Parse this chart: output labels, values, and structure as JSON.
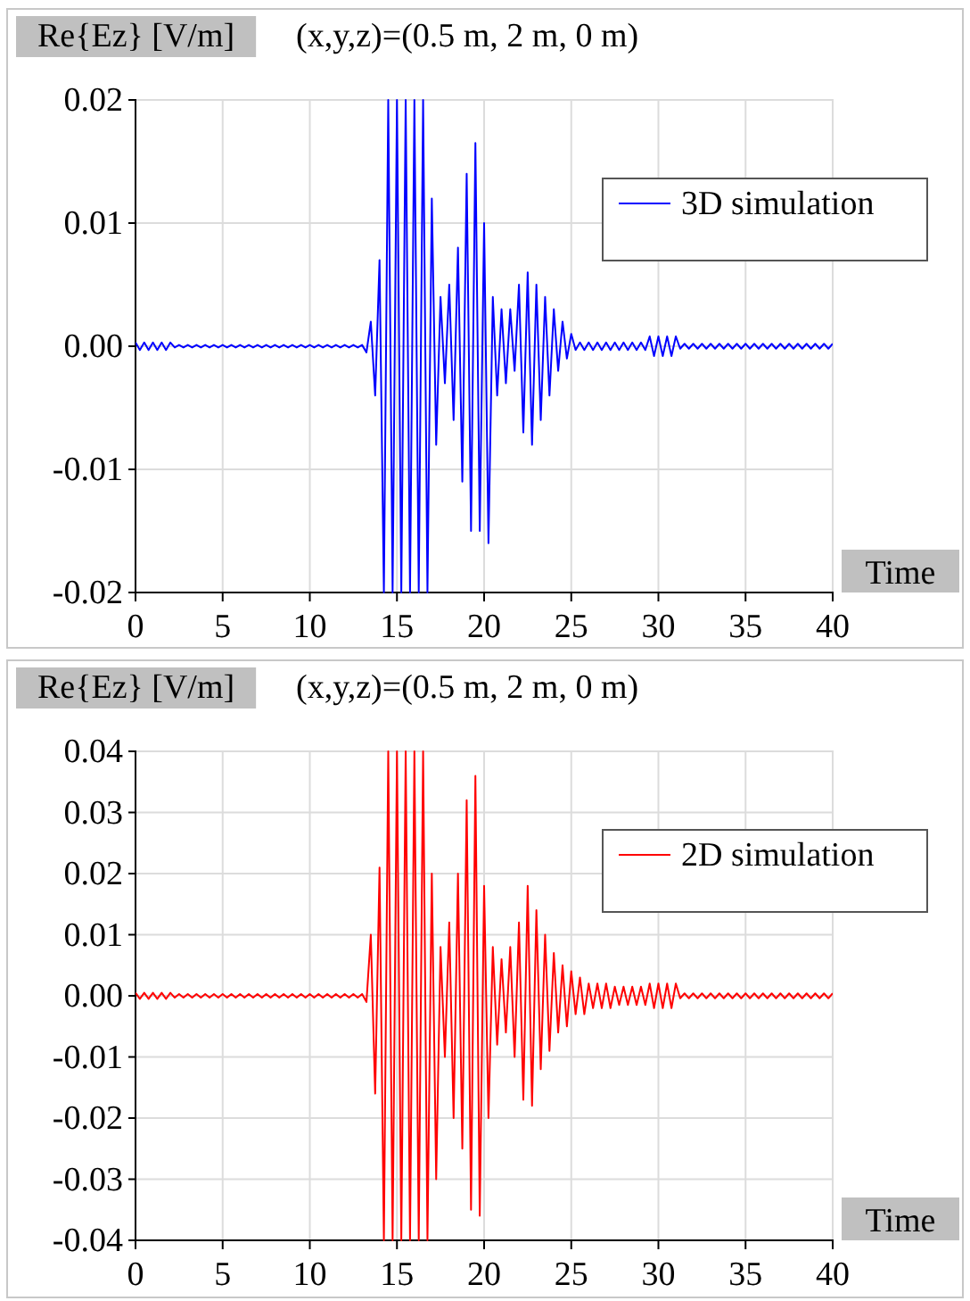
{
  "chart_data": [
    {
      "type": "line",
      "title": "(x,y,z)=(0.5 m, 2 m, 0 m)",
      "ylabel": "Re{Ez} [V/m]",
      "xlabel": "Time",
      "xlim": [
        0,
        40
      ],
      "xticks": [
        0,
        5,
        10,
        15,
        20,
        25,
        30,
        35,
        40
      ],
      "ylim": [
        -0.02,
        0.02
      ],
      "yticks": [
        {
          "value": -0.02,
          "label": "-0.02"
        },
        {
          "value": -0.01,
          "label": "-0.01"
        },
        {
          "value": 0,
          "label": "0.00"
        },
        {
          "value": 0.01,
          "label": "0.01"
        },
        {
          "value": 0.02,
          "label": "0.02"
        }
      ],
      "grid": true,
      "legend": "top right",
      "marker": "none",
      "line_style": "solid",
      "x": [
        0,
        0.25,
        0.5,
        0.75,
        1,
        1.25,
        1.5,
        1.75,
        2,
        2.25,
        2.5,
        2.75,
        3,
        3.25,
        3.5,
        3.75,
        4,
        4.25,
        4.5,
        4.75,
        5,
        5.25,
        5.5,
        5.75,
        6,
        6.25,
        6.5,
        6.75,
        7,
        7.25,
        7.5,
        7.75,
        8,
        8.25,
        8.5,
        8.75,
        9,
        9.25,
        9.5,
        9.75,
        10,
        10.25,
        10.5,
        10.75,
        11,
        11.25,
        11.5,
        11.75,
        12,
        12.25,
        12.5,
        12.75,
        13,
        13.25,
        13.5,
        13.75,
        14,
        14.25,
        14.5,
        14.75,
        15,
        15.25,
        15.5,
        15.75,
        16,
        16.25,
        16.5,
        16.75,
        17,
        17.25,
        17.5,
        17.75,
        18,
        18.25,
        18.5,
        18.75,
        19,
        19.25,
        19.5,
        19.75,
        20,
        20.25,
        20.5,
        20.75,
        21,
        21.25,
        21.5,
        21.75,
        22,
        22.25,
        22.5,
        22.75,
        23,
        23.25,
        23.5,
        23.75,
        24,
        24.25,
        24.5,
        24.75,
        25,
        25.25,
        25.5,
        25.75,
        26,
        26.25,
        26.5,
        26.75,
        27,
        27.25,
        27.5,
        27.75,
        28,
        28.25,
        28.5,
        28.75,
        29,
        29.25,
        29.5,
        29.75,
        30,
        30.25,
        30.5,
        30.75,
        31,
        31.25,
        31.5,
        31.75,
        32,
        32.25,
        32.5,
        32.75,
        33,
        33.25,
        33.5,
        33.75,
        34,
        34.25,
        34.5,
        34.75,
        35,
        35.25,
        35.5,
        35.75,
        36,
        36.25,
        36.5,
        36.75,
        37,
        37.25,
        37.5,
        37.75,
        38,
        38.25,
        38.5,
        38.75,
        39,
        39.25,
        39.5,
        39.75,
        40
      ],
      "series": [
        {
          "name": "3D simulation",
          "color": "#0000ff",
          "values": [
            0.0003,
            -0.0003,
            0.0003,
            -0.0003,
            0.0003,
            -0.0003,
            0.0003,
            -0.0003,
            0.0003,
            -0.0001,
            0.0001,
            -0.0001,
            0.0001,
            -0.0001,
            0.0001,
            -0.0001,
            0.0001,
            -0.0001,
            0.0001,
            -0.0001,
            0.0001,
            -0.0001,
            0.0001,
            -0.0001,
            0.0001,
            -0.0001,
            0.0001,
            -0.0001,
            0.0001,
            -0.0001,
            0.0001,
            -0.0001,
            0.0001,
            -0.0001,
            0.0001,
            -0.0001,
            0.0001,
            -0.0001,
            0.0001,
            -0.0001,
            0.0001,
            -0.0001,
            0.0001,
            -0.0001,
            0.0001,
            -0.0001,
            0.0001,
            -0.0001,
            0.0001,
            -0.0001,
            0.0001,
            -0.0001,
            0.0001,
            -0.0005,
            0.002,
            -0.004,
            0.007,
            -0.02,
            0.02,
            -0.02,
            0.02,
            -0.02,
            0.02,
            -0.02,
            0.02,
            -0.02,
            0.02,
            -0.02,
            0.012,
            -0.008,
            0.004,
            -0.003,
            0.005,
            -0.006,
            0.008,
            -0.011,
            0.014,
            -0.015,
            0.0165,
            -0.015,
            0.01,
            -0.016,
            0.004,
            -0.004,
            0.003,
            -0.003,
            0.003,
            -0.002,
            0.005,
            -0.007,
            0.006,
            -0.008,
            0.005,
            -0.006,
            0.004,
            -0.004,
            0.003,
            -0.002,
            0.002,
            -0.001,
            0.001,
            -0.0003,
            0.0003,
            -0.0003,
            0.0003,
            -0.0003,
            0.0003,
            -0.0003,
            0.0003,
            -0.0003,
            0.0003,
            -0.0003,
            0.0003,
            -0.0003,
            0.0003,
            -0.0003,
            0.0003,
            -0.0003,
            0.0008,
            -0.0008,
            0.0008,
            -0.0008,
            0.0008,
            -0.0008,
            0.0008,
            -0.0002,
            0.0002,
            -0.0002,
            0.0002,
            -0.0002,
            0.0002,
            -0.0002,
            0.0002,
            -0.0002,
            0.0002,
            -0.0002,
            0.0002,
            -0.0002,
            0.0002,
            -0.0002,
            0.0002,
            -0.0002,
            0.0002,
            -0.0002,
            0.0002,
            -0.0002,
            0.0002,
            -0.0002,
            0.0002,
            -0.0002,
            0.0002,
            -0.0002,
            0.0002,
            -0.0002,
            0.0002,
            -0.0002,
            0.0002,
            -0.0002,
            0.0002,
            -0.0002,
            0.0002
          ]
        }
      ]
    },
    {
      "type": "line",
      "title": "(x,y,z)=(0.5 m, 2 m, 0 m)",
      "ylabel": "Re{Ez} [V/m]",
      "xlabel": "Time",
      "xlim": [
        0,
        40
      ],
      "xticks": [
        0,
        5,
        10,
        15,
        20,
        25,
        30,
        35,
        40
      ],
      "ylim": [
        -0.04,
        0.04
      ],
      "yticks": [
        {
          "value": -0.04,
          "label": "-0.04"
        },
        {
          "value": -0.03,
          "label": "-0.03"
        },
        {
          "value": -0.02,
          "label": "-0.02"
        },
        {
          "value": -0.01,
          "label": "-0.01"
        },
        {
          "value": 0,
          "label": "0.00"
        },
        {
          "value": 0.01,
          "label": "0.01"
        },
        {
          "value": 0.02,
          "label": "0.02"
        },
        {
          "value": 0.03,
          "label": "0.03"
        },
        {
          "value": 0.04,
          "label": "0.04"
        }
      ],
      "grid": true,
      "legend": "top right",
      "marker": "none",
      "line_style": "solid",
      "x": [
        0,
        0.25,
        0.5,
        0.75,
        1,
        1.25,
        1.5,
        1.75,
        2,
        2.25,
        2.5,
        2.75,
        3,
        3.25,
        3.5,
        3.75,
        4,
        4.25,
        4.5,
        4.75,
        5,
        5.25,
        5.5,
        5.75,
        6,
        6.25,
        6.5,
        6.75,
        7,
        7.25,
        7.5,
        7.75,
        8,
        8.25,
        8.5,
        8.75,
        9,
        9.25,
        9.5,
        9.75,
        10,
        10.25,
        10.5,
        10.75,
        11,
        11.25,
        11.5,
        11.75,
        12,
        12.25,
        12.5,
        12.75,
        13,
        13.25,
        13.5,
        13.75,
        14,
        14.25,
        14.5,
        14.75,
        15,
        15.25,
        15.5,
        15.75,
        16,
        16.25,
        16.5,
        16.75,
        17,
        17.25,
        17.5,
        17.75,
        18,
        18.25,
        18.5,
        18.75,
        19,
        19.25,
        19.5,
        19.75,
        20,
        20.25,
        20.5,
        20.75,
        21,
        21.25,
        21.5,
        21.75,
        22,
        22.25,
        22.5,
        22.75,
        23,
        23.25,
        23.5,
        23.75,
        24,
        24.25,
        24.5,
        24.75,
        25,
        25.25,
        25.5,
        25.75,
        26,
        26.25,
        26.5,
        26.75,
        27,
        27.25,
        27.5,
        27.75,
        28,
        28.25,
        28.5,
        28.75,
        29,
        29.25,
        29.5,
        29.75,
        30,
        30.25,
        30.5,
        30.75,
        31,
        31.25,
        31.5,
        31.75,
        32,
        32.25,
        32.5,
        32.75,
        33,
        33.25,
        33.5,
        33.75,
        34,
        34.25,
        34.5,
        34.75,
        35,
        35.25,
        35.5,
        35.75,
        36,
        36.25,
        36.5,
        36.75,
        37,
        37.25,
        37.5,
        37.75,
        38,
        38.25,
        38.5,
        38.75,
        39,
        39.25,
        39.5,
        39.75,
        40
      ],
      "series": [
        {
          "name": "2D simulation",
          "color": "#ff0000",
          "values": [
            0.0005,
            -0.0005,
            0.0005,
            -0.0005,
            0.0005,
            -0.0005,
            0.0005,
            -0.0005,
            0.0005,
            -0.0003,
            0.0003,
            -0.0003,
            0.0003,
            -0.0003,
            0.0003,
            -0.0003,
            0.0003,
            -0.0003,
            0.0003,
            -0.0003,
            0.0003,
            -0.0003,
            0.0003,
            -0.0003,
            0.0003,
            -0.0003,
            0.0003,
            -0.0003,
            0.0003,
            -0.0003,
            0.0003,
            -0.0003,
            0.0003,
            -0.0003,
            0.0003,
            -0.0003,
            0.0003,
            -0.0003,
            0.0003,
            -0.0003,
            0.0003,
            -0.0003,
            0.0003,
            -0.0003,
            0.0003,
            -0.0003,
            0.0003,
            -0.0003,
            0.0003,
            -0.0003,
            0.0003,
            -0.0003,
            0.0003,
            -0.001,
            0.01,
            -0.016,
            0.021,
            -0.04,
            0.04,
            -0.04,
            0.04,
            -0.04,
            0.04,
            -0.04,
            0.04,
            -0.04,
            0.04,
            -0.04,
            0.02,
            -0.03,
            0.008,
            -0.01,
            0.012,
            -0.02,
            0.02,
            -0.025,
            0.032,
            -0.035,
            0.036,
            -0.036,
            0.018,
            -0.02,
            0.008,
            -0.008,
            0.006,
            -0.006,
            0.008,
            -0.01,
            0.012,
            -0.017,
            0.018,
            -0.018,
            0.014,
            -0.012,
            0.01,
            -0.009,
            0.007,
            -0.006,
            0.005,
            -0.005,
            0.004,
            -0.003,
            0.003,
            -0.003,
            0.002,
            -0.002,
            0.002,
            -0.002,
            0.002,
            -0.002,
            0.0015,
            -0.0015,
            0.0015,
            -0.0015,
            0.0015,
            -0.0015,
            0.0015,
            -0.0015,
            0.002,
            -0.002,
            0.002,
            -0.002,
            0.002,
            -0.002,
            0.002,
            -0.0004,
            0.0004,
            -0.0004,
            0.0004,
            -0.0004,
            0.0004,
            -0.0004,
            0.0004,
            -0.0004,
            0.0004,
            -0.0004,
            0.0004,
            -0.0004,
            0.0004,
            -0.0004,
            0.0004,
            -0.0004,
            0.0004,
            -0.0004,
            0.0004,
            -0.0004,
            0.0004,
            -0.0004,
            0.0004,
            -0.0004,
            0.0004,
            -0.0004,
            0.0004,
            -0.0004,
            0.0004,
            -0.0004,
            0.0004,
            -0.0004,
            0.0004,
            -0.0004,
            0.0004
          ]
        }
      ]
    }
  ]
}
